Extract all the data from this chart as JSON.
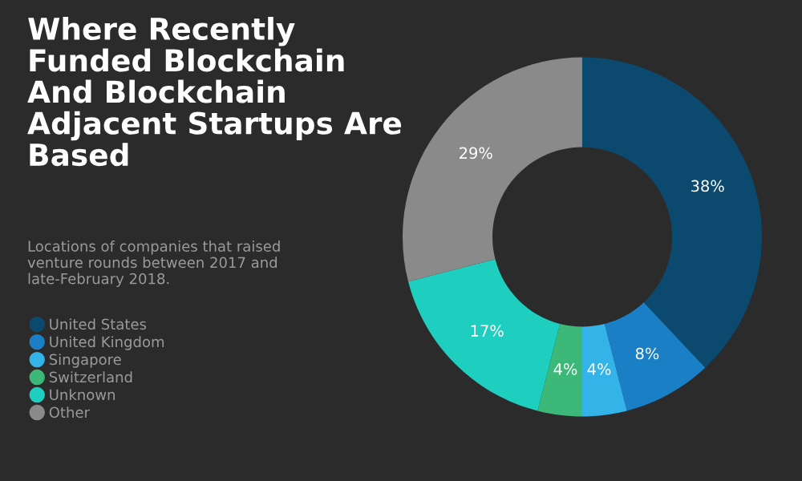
{
  "chart_data": {
    "type": "donut",
    "title": "Where Recently Funded Blockchain And Blockchain Adjacent Startups Are Based",
    "subtitle": "Locations of companies that raised venture rounds between 2017 and late-February 2018.",
    "categories": [
      "United States",
      "United Kingdom",
      "Singapore",
      "Switzerland",
      "Unknown",
      "Other"
    ],
    "values": [
      38,
      8,
      4,
      4,
      17,
      29
    ],
    "colors": [
      "#0b4a6e",
      "#1a7fc4",
      "#33b3e8",
      "#3cb878",
      "#1ecfc0",
      "#8a8a8a"
    ],
    "value_labels": [
      "38%",
      "8%",
      "4%",
      "4%",
      "17%",
      "29%"
    ],
    "legend": "left"
  }
}
